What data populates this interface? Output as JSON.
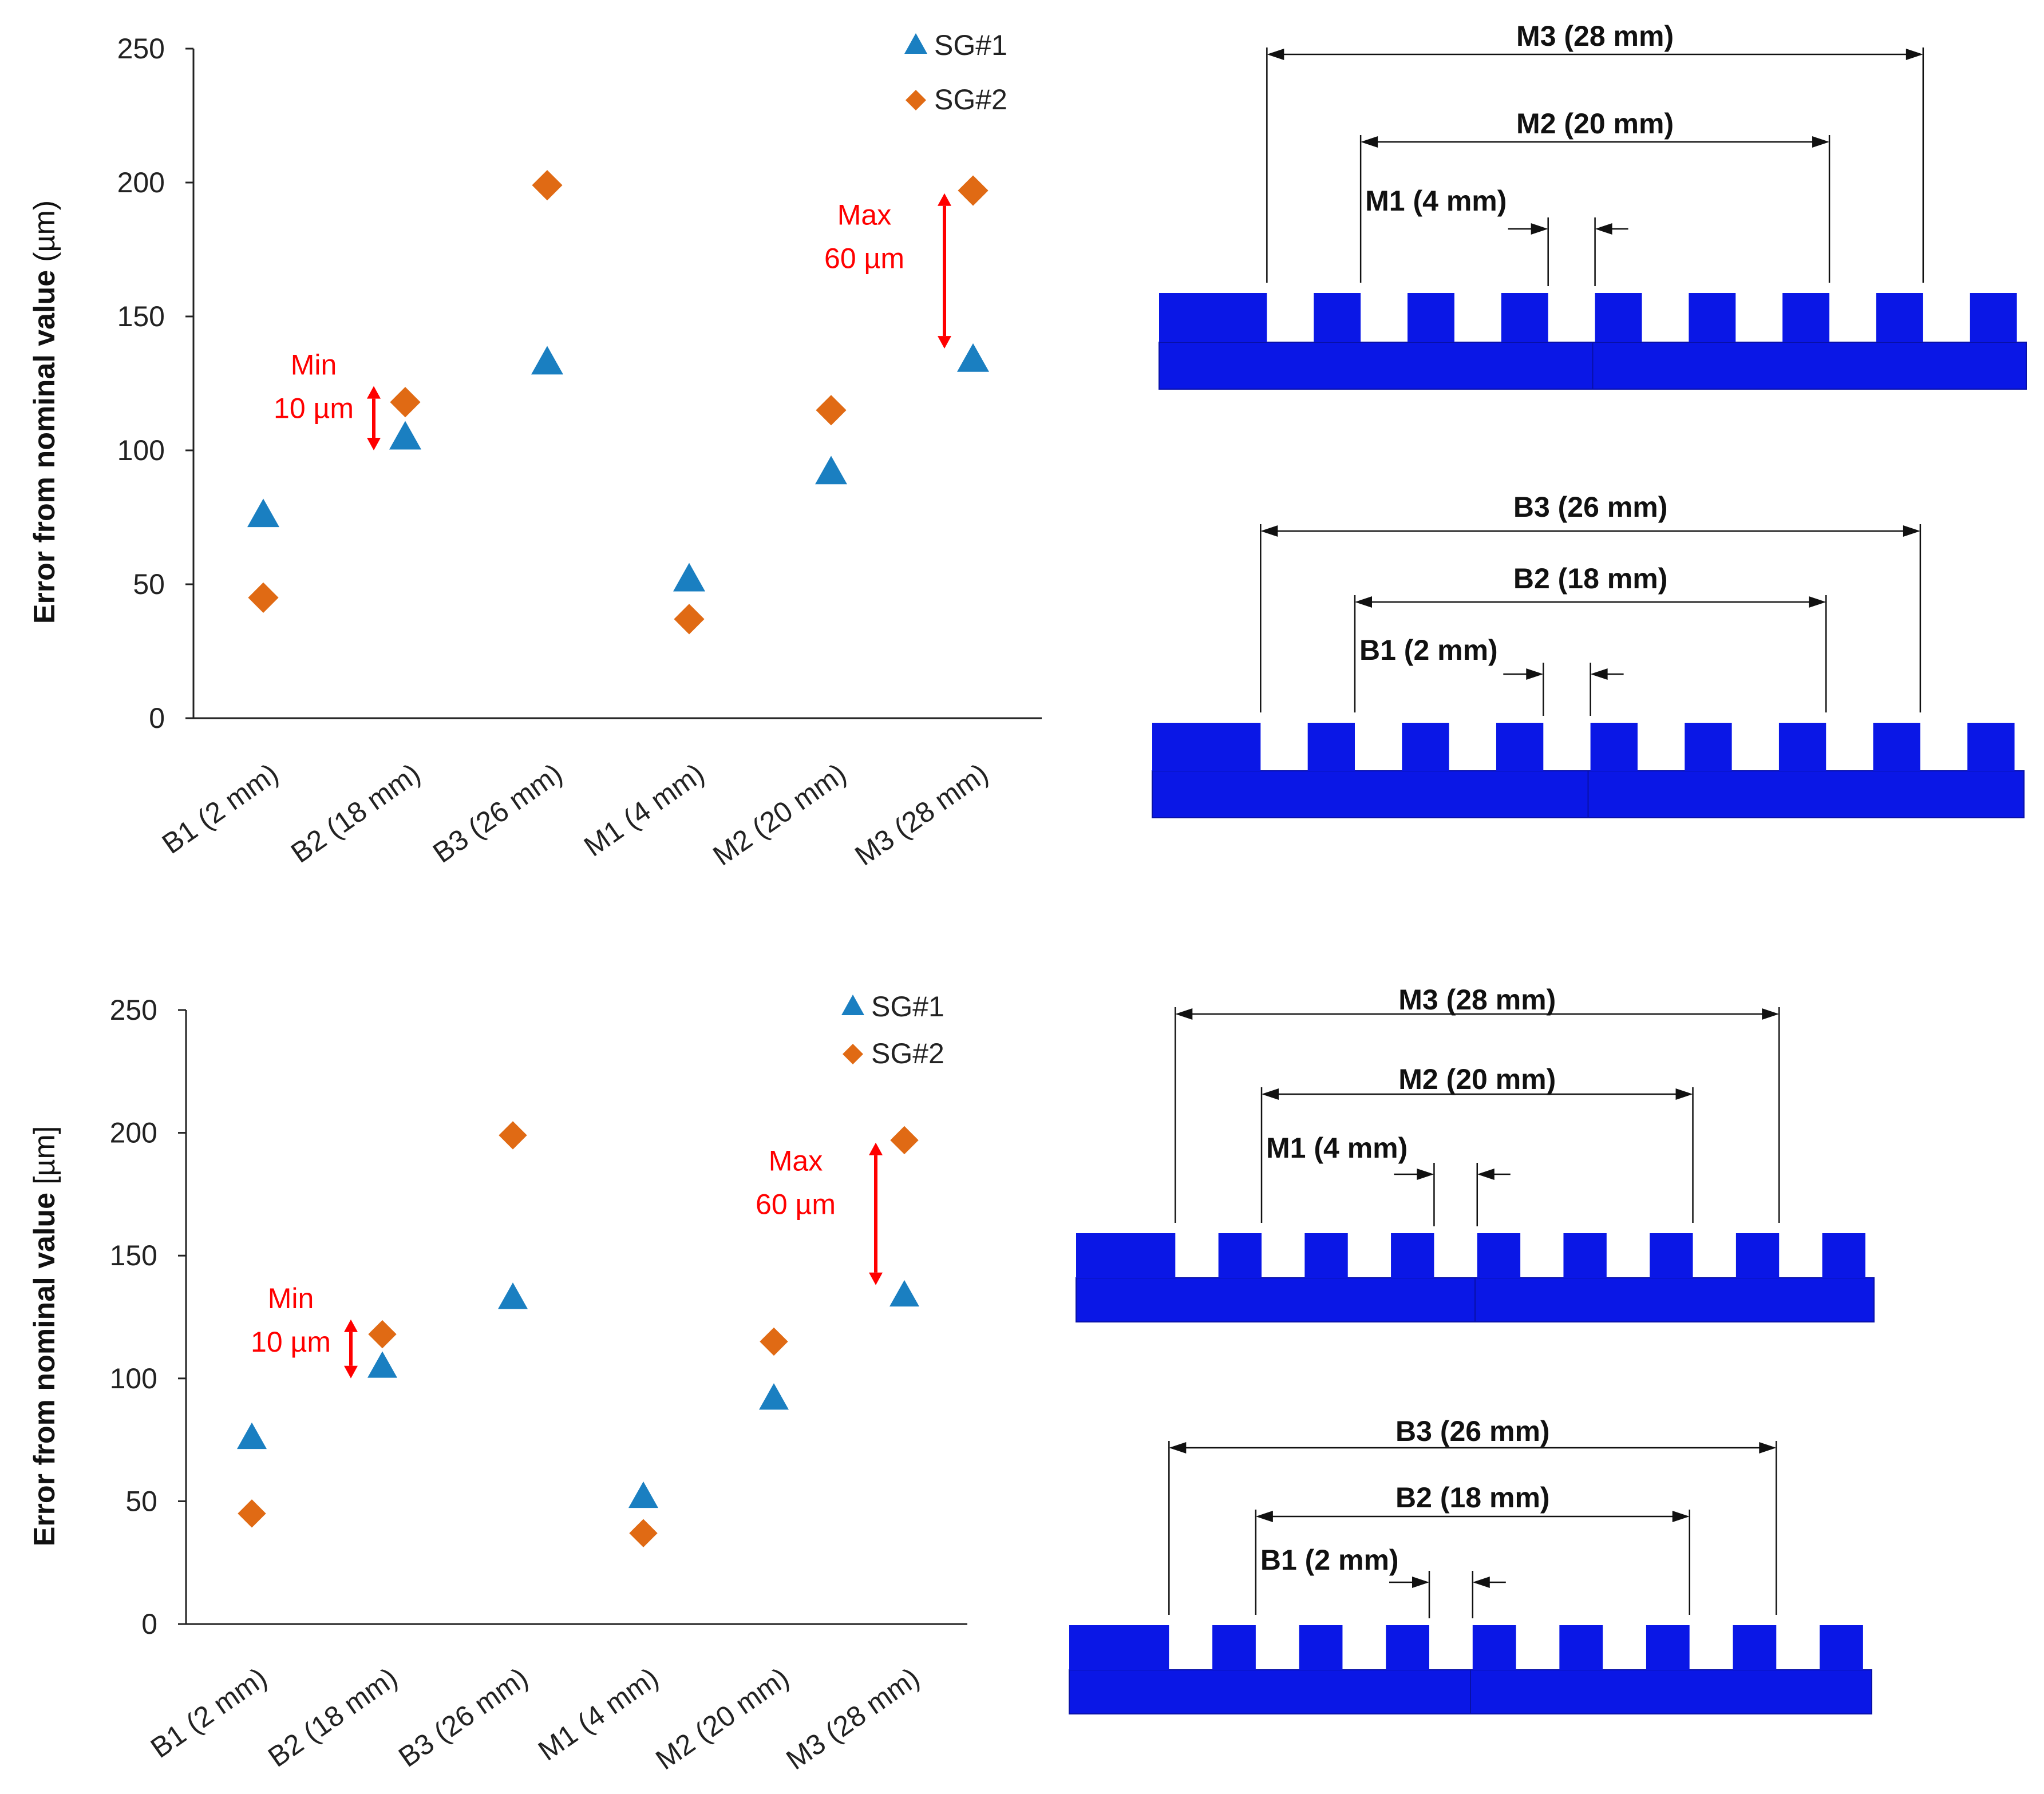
{
  "chart_data": [
    {
      "type": "scatter",
      "panel": "top-left",
      "title": "",
      "xlabel": "",
      "ylabel": "Error from nominal value",
      "ylabel_unit": "(µm)",
      "ylim": [
        0,
        250
      ],
      "yticks": [
        "0",
        "50",
        "100",
        "150",
        "200",
        "250"
      ],
      "categories": [
        "B1 (2 mm)",
        "B2 (18 mm)",
        "B3 (26 mm)",
        "M1 (4 mm)",
        "M2 (20 mm)",
        "M3 (28 mm)"
      ],
      "series": [
        {
          "name": "SG#1",
          "marker": "triangle",
          "color": "#1a7fc1",
          "values": [
            76,
            105,
            133,
            52,
            92,
            134
          ]
        },
        {
          "name": "SG#2",
          "marker": "diamond",
          "color": "#e06a14",
          "values": [
            45,
            118,
            199,
            37,
            115,
            197
          ]
        }
      ],
      "annotations": [
        {
          "label_line1": "Min",
          "label_line2": "10 µm",
          "category_index": 1,
          "from": 105,
          "to": 118
        },
        {
          "label_line1": "Max",
          "label_line2": "60 µm",
          "category_index": 5,
          "from": 134,
          "to": 197
        }
      ],
      "legend_position": "top-right"
    },
    {
      "type": "scatter",
      "panel": "bottom-left",
      "title": "",
      "xlabel": "",
      "ylabel": "Error from nominal value",
      "ylabel_unit": "[µm]",
      "ylim": [
        0,
        250
      ],
      "yticks": [
        "0",
        "50",
        "100",
        "150",
        "200",
        "250"
      ],
      "categories": [
        "B1 (2 mm)",
        "B2 (18 mm)",
        "B3 (26 mm)",
        "M1 (4 mm)",
        "M2 (20 mm)",
        "M3 (28 mm)"
      ],
      "series": [
        {
          "name": "SG#1",
          "marker": "triangle",
          "color": "#1a7fc1",
          "values": [
            76,
            105,
            133,
            52,
            92,
            134
          ]
        },
        {
          "name": "SG#2",
          "marker": "diamond",
          "color": "#e06a14",
          "values": [
            45,
            118,
            199,
            37,
            115,
            197
          ]
        }
      ],
      "annotations": [
        {
          "label_line1": "Min",
          "label_line2": "10 µm",
          "category_index": 1,
          "from": 105,
          "to": 118
        },
        {
          "label_line1": "Max",
          "label_line2": "60 µm",
          "category_index": 5,
          "from": 134,
          "to": 197
        }
      ],
      "legend_position": "top-right"
    }
  ],
  "diagrams": {
    "top_m": {
      "outer": "M3 (28 mm)",
      "middle": "M2 (20 mm)",
      "inner": "M1 (4 mm)"
    },
    "top_b": {
      "outer": "B3 (26 mm)",
      "middle": "B2 (18 mm)",
      "inner": "B1 (2 mm)"
    },
    "bottom_m": {
      "outer": "M3 (28 mm)",
      "middle": "M2 (20 mm)",
      "inner": "M1 (4 mm)"
    },
    "bottom_b": {
      "outer": "B3 (26 mm)",
      "middle": "B2 (18 mm)",
      "inner": "B1 (2 mm)"
    }
  },
  "colors": {
    "gauge_fill": "#0a17e6",
    "gauge_edge": "#0810a8",
    "annotation": "#ff0000",
    "sg1": "#1a7fc1",
    "sg2": "#e06a14"
  }
}
